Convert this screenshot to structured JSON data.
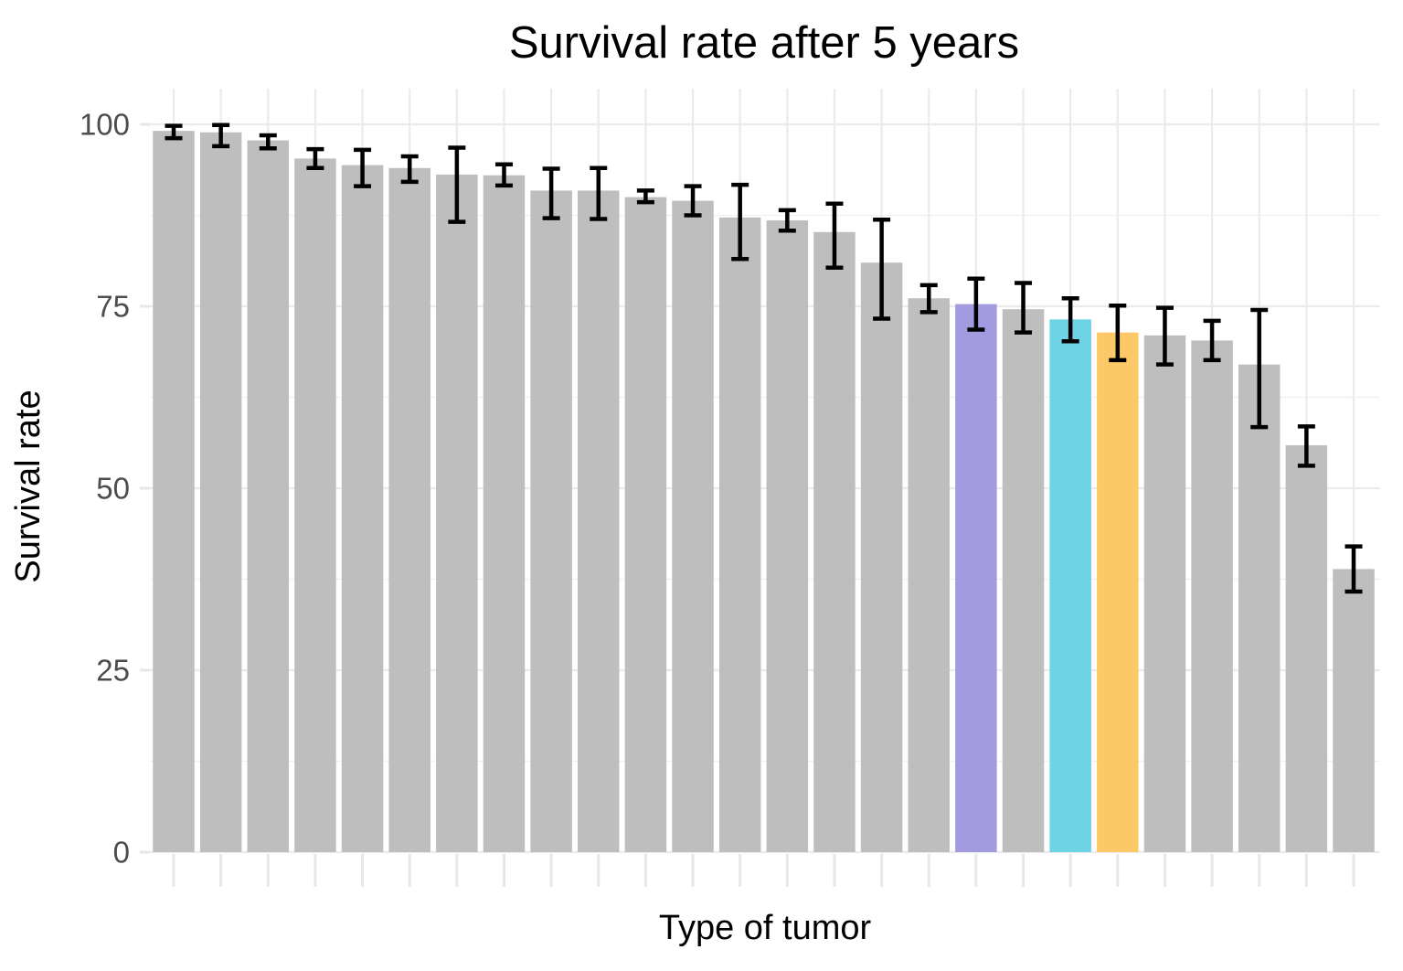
{
  "chart_data": {
    "type": "bar",
    "title": "Survival rate after 5 years",
    "xlabel": "Type of tumor",
    "ylabel": "Survival rate",
    "ylim": [
      0,
      100
    ],
    "yticks": [
      0,
      25,
      50,
      75,
      100
    ],
    "minor_yticks": [
      12.5,
      37.5,
      62.5,
      87.5
    ],
    "x_tick_labels": "none (categories unlabeled)",
    "grid": "major and minor horizontal, vertical at each category",
    "legend_position": "none",
    "error_bars": true,
    "palette": {
      "gray": "#BEBEBE",
      "purple": "#A39BE0",
      "cyan": "#6DD3E5",
      "orange": "#FDC968"
    },
    "style_colors": {
      "error_bar": "#000000",
      "gridline_major": "#EBEBEB",
      "gridline_minor": "#F1F1F1",
      "axis_tick": "#E7E7E7",
      "tick_label": "#4D4D4D",
      "title_text": "#000000",
      "background": "#FFFFFF"
    },
    "bars": [
      {
        "value": 99.1,
        "err_low": 98.1,
        "err_high": 99.8,
        "color": "gray"
      },
      {
        "value": 98.9,
        "err_low": 97.0,
        "err_high": 99.9,
        "color": "gray"
      },
      {
        "value": 97.8,
        "err_low": 96.7,
        "err_high": 98.5,
        "color": "gray"
      },
      {
        "value": 95.3,
        "err_low": 94.0,
        "err_high": 96.6,
        "color": "gray"
      },
      {
        "value": 94.4,
        "err_low": 91.5,
        "err_high": 96.5,
        "color": "gray"
      },
      {
        "value": 94.0,
        "err_low": 92.1,
        "err_high": 95.6,
        "color": "gray"
      },
      {
        "value": 93.1,
        "err_low": 86.6,
        "err_high": 96.8,
        "color": "gray"
      },
      {
        "value": 93.0,
        "err_low": 91.6,
        "err_high": 94.5,
        "color": "gray"
      },
      {
        "value": 90.9,
        "err_low": 87.1,
        "err_high": 93.9,
        "color": "gray"
      },
      {
        "value": 90.9,
        "err_low": 87.0,
        "err_high": 94.0,
        "color": "gray"
      },
      {
        "value": 90.0,
        "err_low": 89.3,
        "err_high": 90.9,
        "color": "gray"
      },
      {
        "value": 89.5,
        "err_low": 87.5,
        "err_high": 91.5,
        "color": "gray"
      },
      {
        "value": 87.2,
        "err_low": 81.5,
        "err_high": 91.7,
        "color": "gray"
      },
      {
        "value": 86.8,
        "err_low": 85.4,
        "err_high": 88.2,
        "color": "gray"
      },
      {
        "value": 85.2,
        "err_low": 80.3,
        "err_high": 89.1,
        "color": "gray"
      },
      {
        "value": 81.0,
        "err_low": 73.3,
        "err_high": 86.9,
        "color": "gray"
      },
      {
        "value": 76.1,
        "err_low": 74.2,
        "err_high": 77.9,
        "color": "gray"
      },
      {
        "value": 75.3,
        "err_low": 71.8,
        "err_high": 78.8,
        "color": "purple"
      },
      {
        "value": 74.6,
        "err_low": 71.4,
        "err_high": 78.2,
        "color": "gray"
      },
      {
        "value": 73.2,
        "err_low": 70.2,
        "err_high": 76.1,
        "color": "cyan"
      },
      {
        "value": 71.4,
        "err_low": 67.6,
        "err_high": 75.1,
        "color": "orange"
      },
      {
        "value": 71.0,
        "err_low": 67.0,
        "err_high": 74.8,
        "color": "gray"
      },
      {
        "value": 70.3,
        "err_low": 67.6,
        "err_high": 73.0,
        "color": "gray"
      },
      {
        "value": 67.0,
        "err_low": 58.4,
        "err_high": 74.5,
        "color": "gray"
      },
      {
        "value": 55.9,
        "err_low": 53.1,
        "err_high": 58.5,
        "color": "gray"
      },
      {
        "value": 38.9,
        "err_low": 35.8,
        "err_high": 42.0,
        "color": "gray"
      }
    ]
  }
}
